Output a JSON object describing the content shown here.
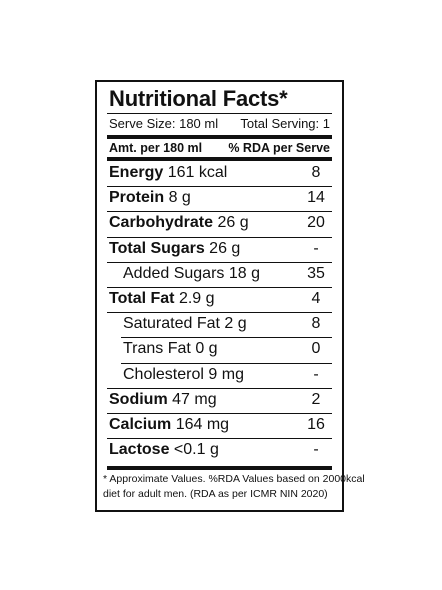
{
  "label": {
    "title": "Nutritional Facts*",
    "serve_size": "Serve Size: 180 ml",
    "total_serving": "Total Serving: 1",
    "amount_header": "Amt. per 180 ml",
    "rda_header": "% RDA per Serve",
    "rows": [
      {
        "name": "Energy",
        "amount": "161 kcal",
        "rda": "8",
        "bold": true,
        "indent": false
      },
      {
        "name": "Protein",
        "amount": "8 g",
        "rda": "14",
        "bold": true,
        "indent": false
      },
      {
        "name": "Carbohydrate",
        "amount": "26 g",
        "rda": "20",
        "bold": true,
        "indent": false
      },
      {
        "name": "Total Sugars",
        "amount": "26 g",
        "rda": "-",
        "bold": true,
        "indent": false
      },
      {
        "name": "Added Sugars",
        "amount": "18 g",
        "rda": "35",
        "bold": false,
        "indent": true
      },
      {
        "name": "Total Fat",
        "amount": "2.9 g",
        "rda": "4",
        "bold": true,
        "indent": false
      },
      {
        "name": "Saturated Fat",
        "amount": "2 g",
        "rda": "8",
        "bold": false,
        "indent": true
      },
      {
        "name": "Trans Fat",
        "amount": "0 g",
        "rda": "0",
        "bold": false,
        "indent": true
      },
      {
        "name": "Cholesterol",
        "amount": "9 mg",
        "rda": "-",
        "bold": false,
        "indent": true
      },
      {
        "name": "Sodium",
        "amount": "47 mg",
        "rda": "2",
        "bold": true,
        "indent": false
      },
      {
        "name": "Calcium",
        "amount": "164 mg",
        "rda": "16",
        "bold": true,
        "indent": false
      },
      {
        "name": "Lactose",
        "amount": "<0.1 g",
        "rda": "-",
        "bold": true,
        "indent": false
      }
    ],
    "footnote_line1": "* Approximate Values. %RDA Values based on 2000kcal",
    "footnote_line2": "diet for adult men. (RDA as per ICMR NIN 2020)"
  }
}
